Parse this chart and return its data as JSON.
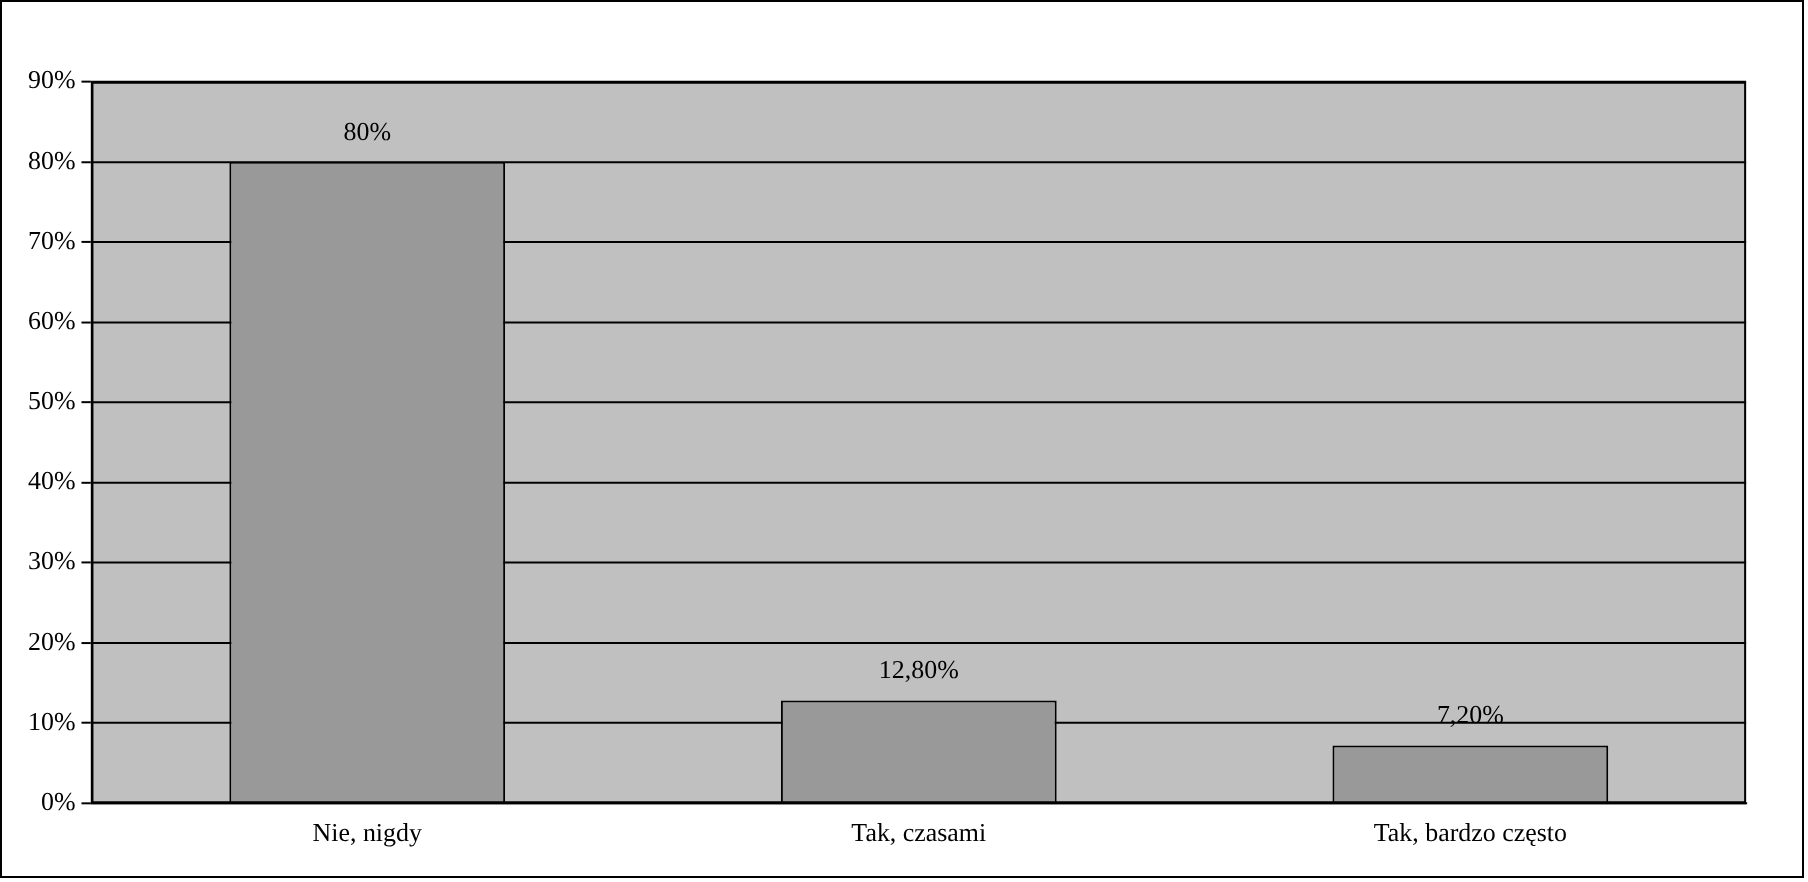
{
  "chart_data": {
    "type": "bar",
    "categories": [
      "Nie, nigdy",
      "Tak, czasami",
      "Tak, bardzo często"
    ],
    "values": [
      80,
      12.8,
      7.2
    ],
    "value_labels": [
      "80%",
      "12,80%",
      "7,20%"
    ],
    "color": "#999999",
    "ylim": [
      0,
      90
    ],
    "yticks": [
      {
        "value": 0,
        "label": "0%"
      },
      {
        "value": 10,
        "label": "10%"
      },
      {
        "value": 20,
        "label": "20%"
      },
      {
        "value": 30,
        "label": "30%"
      },
      {
        "value": 40,
        "label": "40%"
      },
      {
        "value": 50,
        "label": "50%"
      },
      {
        "value": 60,
        "label": "60%"
      },
      {
        "value": 70,
        "label": "70%"
      },
      {
        "value": 80,
        "label": "80%"
      },
      {
        "value": 90,
        "label": "90%"
      }
    ],
    "grid": "y",
    "legend": false
  }
}
